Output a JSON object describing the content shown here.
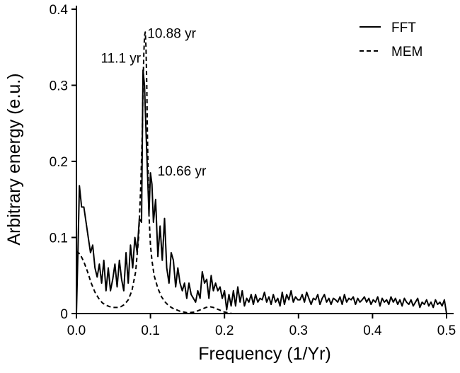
{
  "chart_data": {
    "type": "line",
    "title": "",
    "xlabel": "Frequency (1/Yr)",
    "ylabel": "Arbitrary energy (e.u.)",
    "xlim": [
      0,
      0.5
    ],
    "ylim": [
      0,
      0.4
    ],
    "xticks": [
      0.0,
      0.1,
      0.2,
      0.3,
      0.4,
      0.5
    ],
    "xtick_labels": [
      "0.0",
      "0.1",
      "0.2",
      "0.3",
      "0.4",
      "0.5"
    ],
    "yticks": [
      0,
      0.1,
      0.2,
      0.3,
      0.4
    ],
    "ytick_labels": [
      "0",
      "0.1",
      "0.2",
      "0.3",
      "0.4"
    ],
    "grid": false,
    "legend_position": "top-right",
    "series": [
      {
        "name": "FFT",
        "style": "solid",
        "color": "#000000",
        "x": [
          0.0,
          0.002,
          0.004,
          0.007,
          0.01,
          0.013,
          0.016,
          0.019,
          0.022,
          0.025,
          0.028,
          0.031,
          0.034,
          0.037,
          0.04,
          0.043,
          0.046,
          0.049,
          0.052,
          0.055,
          0.058,
          0.061,
          0.064,
          0.067,
          0.07,
          0.073,
          0.076,
          0.079,
          0.082,
          0.085,
          0.088,
          0.09,
          0.092,
          0.094,
          0.096,
          0.098,
          0.1,
          0.102,
          0.104,
          0.107,
          0.11,
          0.113,
          0.116,
          0.119,
          0.122,
          0.125,
          0.128,
          0.131,
          0.134,
          0.137,
          0.14,
          0.143,
          0.146,
          0.149,
          0.152,
          0.155,
          0.158,
          0.161,
          0.164,
          0.167,
          0.17,
          0.173,
          0.176,
          0.179,
          0.182,
          0.185,
          0.188,
          0.191,
          0.194,
          0.197,
          0.2,
          0.203,
          0.206,
          0.209,
          0.212,
          0.215,
          0.218,
          0.221,
          0.224,
          0.227,
          0.23,
          0.233,
          0.236,
          0.239,
          0.242,
          0.245,
          0.248,
          0.251,
          0.254,
          0.257,
          0.26,
          0.263,
          0.266,
          0.269,
          0.272,
          0.275,
          0.278,
          0.281,
          0.284,
          0.287,
          0.29,
          0.293,
          0.296,
          0.299,
          0.302,
          0.305,
          0.308,
          0.311,
          0.314,
          0.317,
          0.32,
          0.323,
          0.326,
          0.329,
          0.332,
          0.335,
          0.338,
          0.341,
          0.344,
          0.347,
          0.35,
          0.353,
          0.356,
          0.359,
          0.362,
          0.365,
          0.368,
          0.371,
          0.374,
          0.377,
          0.38,
          0.383,
          0.386,
          0.389,
          0.392,
          0.395,
          0.398,
          0.401,
          0.404,
          0.407,
          0.41,
          0.413,
          0.416,
          0.419,
          0.422,
          0.425,
          0.428,
          0.431,
          0.434,
          0.437,
          0.44,
          0.443,
          0.446,
          0.449,
          0.452,
          0.455,
          0.458,
          0.461,
          0.464,
          0.467,
          0.47,
          0.473,
          0.476,
          0.479,
          0.482,
          0.485,
          0.488,
          0.491,
          0.494,
          0.497,
          0.5
        ],
        "y": [
          0.0,
          0.08,
          0.168,
          0.14,
          0.14,
          0.12,
          0.1,
          0.08,
          0.09,
          0.06,
          0.048,
          0.065,
          0.04,
          0.07,
          0.03,
          0.06,
          0.03,
          0.045,
          0.065,
          0.035,
          0.07,
          0.045,
          0.03,
          0.08,
          0.04,
          0.09,
          0.06,
          0.1,
          0.08,
          0.125,
          0.12,
          0.32,
          0.3,
          0.24,
          0.185,
          0.13,
          0.185,
          0.17,
          0.12,
          0.15,
          0.075,
          0.115,
          0.07,
          0.125,
          0.06,
          0.04,
          0.08,
          0.07,
          0.035,
          0.06,
          0.04,
          0.03,
          0.04,
          0.02,
          0.04,
          0.025,
          0.02,
          0.015,
          0.03,
          0.02,
          0.055,
          0.04,
          0.045,
          0.02,
          0.05,
          0.03,
          0.04,
          0.03,
          0.035,
          0.02,
          0.03,
          0.005,
          0.025,
          0.01,
          0.03,
          0.01,
          0.035,
          0.015,
          0.03,
          0.01,
          0.02,
          0.015,
          0.025,
          0.012,
          0.025,
          0.015,
          0.02,
          0.018,
          0.028,
          0.015,
          0.022,
          0.012,
          0.025,
          0.015,
          0.02,
          0.01,
          0.028,
          0.012,
          0.025,
          0.018,
          0.03,
          0.015,
          0.022,
          0.018,
          0.018,
          0.025,
          0.015,
          0.028,
          0.02,
          0.012,
          0.02,
          0.018,
          0.025,
          0.012,
          0.02,
          0.025,
          0.015,
          0.02,
          0.012,
          0.02,
          0.018,
          0.015,
          0.022,
          0.012,
          0.025,
          0.015,
          0.02,
          0.018,
          0.022,
          0.012,
          0.02,
          0.015,
          0.018,
          0.022,
          0.015,
          0.02,
          0.012,
          0.018,
          0.015,
          0.022,
          0.01,
          0.02,
          0.015,
          0.018,
          0.012,
          0.022,
          0.015,
          0.02,
          0.012,
          0.018,
          0.01,
          0.02,
          0.015,
          0.012,
          0.018,
          0.01,
          0.015,
          0.02,
          0.008,
          0.015,
          0.012,
          0.018,
          0.01,
          0.015,
          0.008,
          0.018,
          0.012,
          0.015,
          0.01,
          0.018,
          0.0
        ]
      },
      {
        "name": "MEM",
        "style": "dashed",
        "color": "#000000",
        "x": [
          0.0,
          0.005,
          0.01,
          0.015,
          0.02,
          0.025,
          0.03,
          0.035,
          0.04,
          0.045,
          0.05,
          0.055,
          0.06,
          0.065,
          0.07,
          0.075,
          0.08,
          0.084,
          0.087,
          0.089,
          0.09,
          0.091,
          0.092,
          0.093,
          0.094,
          0.095,
          0.096,
          0.097,
          0.098,
          0.1,
          0.102,
          0.105,
          0.11,
          0.115,
          0.12,
          0.125,
          0.13,
          0.135,
          0.14,
          0.145,
          0.15,
          0.155,
          0.16,
          0.165,
          0.17,
          0.175,
          0.18,
          0.185,
          0.19,
          0.195,
          0.2,
          0.205,
          0.21,
          0.22,
          0.24,
          0.26,
          0.28
        ],
        "y": [
          0.082,
          0.078,
          0.068,
          0.055,
          0.04,
          0.028,
          0.02,
          0.014,
          0.011,
          0.009,
          0.008,
          0.008,
          0.009,
          0.012,
          0.018,
          0.03,
          0.055,
          0.1,
          0.17,
          0.24,
          0.3,
          0.34,
          0.365,
          0.37,
          0.35,
          0.3,
          0.23,
          0.175,
          0.13,
          0.09,
          0.07,
          0.05,
          0.033,
          0.022,
          0.015,
          0.01,
          0.007,
          0.005,
          0.003,
          0.002,
          0.001,
          0.0015,
          0.002,
          0.004,
          0.006,
          0.008,
          0.009,
          0.008,
          0.006,
          0.004,
          0.002,
          0.001,
          0.0,
          0.0,
          0.0,
          0.0,
          0.0
        ]
      }
    ],
    "annotations": [
      {
        "text": "11.1 yr",
        "x": 0.09,
        "y": 0.33,
        "anchor": "end"
      },
      {
        "text": "10.88 yr",
        "x": 0.093,
        "y": 0.37,
        "anchor": "start"
      },
      {
        "text": "10.66 yr",
        "x": 0.101,
        "y": 0.185,
        "anchor": "start"
      }
    ]
  }
}
